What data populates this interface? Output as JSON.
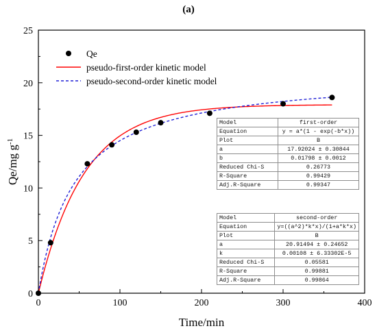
{
  "panel_label": "(a)",
  "chart_data": {
    "type": "scatter",
    "xlabel": "Time/min",
    "ylabel": "Qe/mg g",
    "ylabel_sup": "-1",
    "xlim": [
      0,
      400
    ],
    "ylim": [
      0,
      25
    ],
    "xticks": [
      0,
      100,
      200,
      300,
      400
    ],
    "yticks": [
      0,
      5,
      10,
      15,
      20,
      25
    ],
    "grid": false,
    "legend_position": "top-left",
    "points": {
      "name": "Qe",
      "color": "#000000",
      "x": [
        0,
        15,
        60,
        90,
        120,
        150,
        210,
        300,
        360
      ],
      "y": [
        0,
        4.8,
        12.3,
        14.1,
        15.3,
        16.2,
        17.1,
        18.0,
        18.6
      ]
    },
    "series": [
      {
        "name": "pseudo-first-order kinetic model",
        "color": "#ff0000",
        "style": "solid",
        "model": "first",
        "a": 17.92024,
        "b": 0.01798
      },
      {
        "name": "pseudo-second-order kinetic model",
        "color": "#1f1fd6",
        "style": "dashed",
        "model": "second",
        "a": 20.91494,
        "k": 0.00108
      }
    ]
  },
  "tables": [
    {
      "rows": [
        [
          "Model",
          "first-order"
        ],
        [
          "Equation",
          "y = a*(1 - exp(-b*x))"
        ],
        [
          "Plot",
          "B"
        ],
        [
          "a",
          "17.92024 ± 0.30844"
        ],
        [
          "b",
          "0.01798 ± 0.0012"
        ],
        [
          "Reduced Chi-S",
          "0.26773"
        ],
        [
          "R-Square",
          "0.99429"
        ],
        [
          "Adj.R-Square",
          "0.99347"
        ]
      ]
    },
    {
      "rows": [
        [
          "Model",
          "second-order"
        ],
        [
          "Equation",
          "y=((a^2)*k*x)/(1+a*k*x)"
        ],
        [
          "Plot",
          "B"
        ],
        [
          "a",
          "20.91494 ± 0.24652"
        ],
        [
          "k",
          "0.00108 ± 6.33302E-5"
        ],
        [
          "Reduced Chi-S",
          "0.05581"
        ],
        [
          "R-Square",
          "0.99881"
        ],
        [
          "Adj.R-Square",
          "0.99864"
        ]
      ]
    }
  ]
}
